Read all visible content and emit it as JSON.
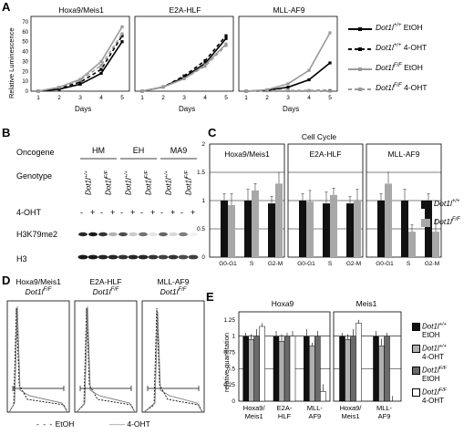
{
  "panel_letters": {
    "a": "A",
    "b": "B",
    "c": "C",
    "d": "D",
    "e": "E"
  },
  "panelA": {
    "ylabel": "Relative Luminescence",
    "xlabel": "Days",
    "yticks": [
      "0",
      "10",
      "20",
      "30",
      "40",
      "50",
      "60",
      "70"
    ],
    "xticks": [
      "1",
      "2",
      "3",
      "4",
      "5"
    ],
    "titles": [
      "Hoxa9/Meis1",
      "E2A-HLF",
      "MLL-AF9"
    ],
    "legend": [
      {
        "geno": "Dot1l",
        "sup": "+/+",
        "cond": "EtOH",
        "color": "#000000",
        "dash": "none"
      },
      {
        "geno": "Dot1l",
        "sup": "+/+",
        "cond": "4-OHT",
        "color": "#000000",
        "dash": "4,3"
      },
      {
        "geno": "Dot1l",
        "sup": "F/F",
        "cond": "EtOH",
        "color": "#9a9a9a",
        "dash": "none"
      },
      {
        "geno": "Dot1l",
        "sup": "F/F",
        "cond": "4-OHT",
        "color": "#9a9a9a",
        "dash": "4,3"
      }
    ]
  },
  "panelB": {
    "oncogene_label": "Oncogene",
    "genotype_label": "Genotype",
    "treat_label": "4-OHT",
    "groups": [
      "HM",
      "EH",
      "MA9"
    ],
    "genos": [
      {
        "geno": "Dot1l",
        "sup": "+/+"
      },
      {
        "geno": "Dot1l",
        "sup": "F/F"
      },
      {
        "geno": "Dot1l",
        "sup": "+/+"
      },
      {
        "geno": "Dot1l",
        "sup": "F/F"
      },
      {
        "geno": "Dot1l",
        "sup": "+/+"
      },
      {
        "geno": "Dot1l",
        "sup": "F/F"
      }
    ],
    "signs": [
      "-",
      "+",
      "-",
      "+",
      "-",
      "+",
      "-",
      "+",
      "-",
      "+",
      "-",
      "+"
    ],
    "band_labels": [
      "H3K79me2",
      "H3"
    ]
  },
  "panelC": {
    "title": "Cell Cycle",
    "yticks": [
      "0",
      "0.5",
      "1",
      "1.5",
      "2"
    ],
    "titles": [
      "Hoxa9/Meis1",
      "E2A-HLF",
      "MLL-AF9"
    ],
    "xticks": [
      "G0-G1",
      "S",
      "G2-M"
    ],
    "legend": [
      {
        "geno": "Dot1l",
        "sup": "+/+",
        "color": "#111111"
      },
      {
        "geno": "Dot1l",
        "sup": "F/F",
        "color": "#a8a8a8"
      }
    ]
  },
  "panelD": {
    "titles": [
      {
        "name": "Hoxa9/Meis1",
        "geno": "Dot1l",
        "sup": "F/F"
      },
      {
        "name": "E2A-HLF",
        "geno": "Dot1l",
        "sup": "F/F"
      },
      {
        "name": "MLL-AF9",
        "geno": "Dot1l",
        "sup": "F/F"
      }
    ],
    "legend": [
      "EtOH",
      "4-OHT"
    ]
  },
  "panelE": {
    "ylabel": "relative quantitation",
    "yticks": [
      "0",
      "0.25",
      "0.5",
      "0.75",
      "1",
      "1.25"
    ],
    "titles": [
      "Hoxa9",
      "Meis1"
    ],
    "hoxa_x": [
      "Hoxa9/ Meis1",
      "E2A- HLF",
      "MLL- AF9"
    ],
    "meis_x": [
      "Hoxa9/ Meis1",
      "MLL- AF9"
    ],
    "legend": [
      {
        "geno": "Dot1l",
        "sup": "+/+",
        "cond": "EtOH",
        "color": "#111111"
      },
      {
        "geno": "Dot1l",
        "sup": "+/+",
        "cond": "4-OHT",
        "color": "#b0b0b0"
      },
      {
        "geno": "Dot1l",
        "sup": "F/F",
        "cond": "EtOH",
        "color": "#6a6a6a"
      },
      {
        "geno": "Dot1l",
        "sup": "F/F",
        "cond": "4-OHT",
        "color": "#ffffff"
      }
    ]
  },
  "chart_data": [
    {
      "type": "line",
      "title": "Hoxa9/Meis1",
      "xlabel": "Days",
      "ylabel": "Relative Luminescence",
      "ylim": [
        0,
        70
      ],
      "x": [
        1,
        2,
        3,
        4,
        5
      ],
      "series": [
        {
          "name": "Dot1l+/+ EtOH",
          "values": [
            0,
            2,
            7,
            18,
            50
          ]
        },
        {
          "name": "Dot1l+/+ 4-OHT",
          "values": [
            0,
            3,
            9,
            22,
            56
          ]
        },
        {
          "name": "Dot1lF/F EtOH",
          "values": [
            0,
            4,
            12,
            30,
            65
          ]
        },
        {
          "name": "Dot1lF/F 4-OHT",
          "values": [
            0,
            4,
            11,
            26,
            58
          ]
        }
      ]
    },
    {
      "type": "line",
      "title": "E2A-HLF",
      "xlabel": "Days",
      "ylim": [
        0,
        50
      ],
      "x": [
        1,
        2,
        3,
        4,
        5
      ],
      "series": [
        {
          "name": "Dot1l+/+ EtOH",
          "values": [
            0,
            3,
            10,
            20,
            38
          ]
        },
        {
          "name": "Dot1l+/+ 4-OHT",
          "values": [
            0,
            3,
            11,
            22,
            40
          ]
        },
        {
          "name": "Dot1lF/F EtOH",
          "values": [
            0,
            3,
            9,
            19,
            34
          ]
        },
        {
          "name": "Dot1lF/F 4-OHT",
          "values": [
            0,
            3,
            9,
            18,
            33
          ]
        }
      ]
    },
    {
      "type": "line",
      "title": "MLL-AF9",
      "xlabel": "Days",
      "ylim": [
        0,
        140
      ],
      "x": [
        1,
        2,
        3,
        4,
        5
      ],
      "series": [
        {
          "name": "Dot1l+/+ EtOH",
          "values": [
            0,
            2,
            8,
            23,
            57
          ]
        },
        {
          "name": "Dot1l+/+ 4-OHT",
          "values": [
            0,
            1,
            1,
            1,
            1
          ]
        },
        {
          "name": "Dot1lF/F EtOH",
          "values": [
            0,
            3,
            15,
            42,
            118
          ]
        },
        {
          "name": "Dot1lF/F 4-OHT",
          "values": [
            0,
            1,
            1,
            1,
            0
          ]
        }
      ]
    },
    {
      "type": "bar",
      "title": "Hoxa9/Meis1",
      "categories": [
        "G0-G1",
        "S",
        "G2-M"
      ],
      "ylim": [
        0,
        2
      ],
      "series": [
        {
          "name": "Dot1l+/+",
          "values": [
            1.0,
            1.0,
            0.95
          ]
        },
        {
          "name": "Dot1lF/F",
          "values": [
            0.92,
            1.18,
            1.3
          ]
        }
      ]
    },
    {
      "type": "bar",
      "title": "E2A-HLF",
      "categories": [
        "G0-G1",
        "S",
        "G2-M"
      ],
      "ylim": [
        0,
        2
      ],
      "series": [
        {
          "name": "Dot1l+/+",
          "values": [
            1.0,
            0.95,
            0.95
          ]
        },
        {
          "name": "Dot1lF/F",
          "values": [
            0.98,
            1.1,
            1.0
          ]
        }
      ]
    },
    {
      "type": "bar",
      "title": "MLL-AF9",
      "categories": [
        "G0-G1",
        "S",
        "G2-M"
      ],
      "ylim": [
        0,
        2
      ],
      "series": [
        {
          "name": "Dot1l+/+",
          "values": [
            1.0,
            1.0,
            1.0
          ]
        },
        {
          "name": "Dot1lF/F",
          "values": [
            1.3,
            0.45,
            0.45
          ]
        }
      ]
    },
    {
      "type": "bar",
      "title": "Hoxa9",
      "categories": [
        "Hoxa9/Meis1",
        "E2A-HLF",
        "MLL-AF9"
      ],
      "ylim": [
        0,
        1.25
      ],
      "series": [
        {
          "name": "Dot1l+/+ EtOH",
          "values": [
            1.0,
            1.0,
            1.0
          ]
        },
        {
          "name": "Dot1l+/+ 4-OHT",
          "values": [
            0.95,
            0.92,
            0.85
          ]
        },
        {
          "name": "Dot1lF/F EtOH",
          "values": [
            1.0,
            1.0,
            1.0
          ]
        },
        {
          "name": "Dot1lF/F 4-OHT",
          "values": [
            1.15,
            1.0,
            0.15
          ]
        }
      ]
    },
    {
      "type": "bar",
      "title": "Meis1",
      "categories": [
        "Hoxa9/Meis1",
        "MLL-AF9"
      ],
      "ylim": [
        0,
        1.25
      ],
      "series": [
        {
          "name": "Dot1l+/+ EtOH",
          "values": [
            1.0,
            1.0
          ]
        },
        {
          "name": "Dot1l+/+ 4-OHT",
          "values": [
            0.95,
            0.85
          ]
        },
        {
          "name": "Dot1lF/F EtOH",
          "values": [
            1.0,
            1.0
          ]
        },
        {
          "name": "Dot1lF/F 4-OHT",
          "values": [
            1.2,
            0.0
          ]
        }
      ]
    }
  ]
}
